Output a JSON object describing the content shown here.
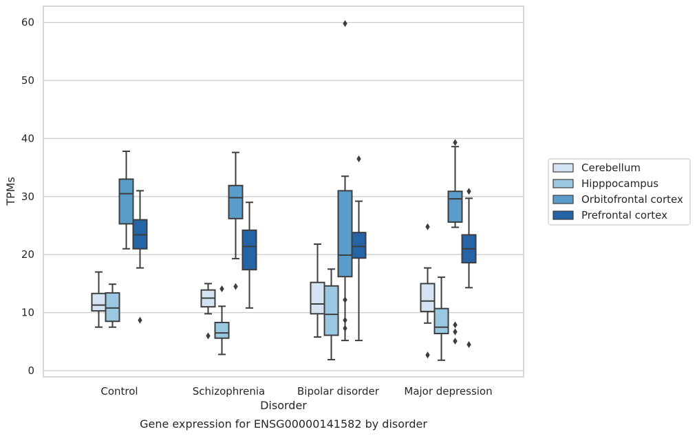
{
  "chart_data": {
    "type": "box",
    "title": "Gene expression for ENSG00000141582 by disorder",
    "xlabel": "Disorder",
    "ylabel": "TPMs",
    "ylim": [
      -1,
      63
    ],
    "yticks": [
      0,
      10,
      20,
      30,
      40,
      50,
      60
    ],
    "grid": "horizontal",
    "legend_placement": "right",
    "categories": [
      "Control",
      "Schizophrenia",
      "Bipolar disorder",
      "Major depression"
    ],
    "series": [
      {
        "name": "Cerebellum",
        "color": "#d4e3f1",
        "boxes": [
          {
            "whislo": 7.5,
            "q1": 10.3,
            "med": 11.3,
            "q3": 13.3,
            "whishi": 17.0,
            "fliers": []
          },
          {
            "whislo": 9.8,
            "q1": 11.0,
            "med": 12.5,
            "q3": 13.9,
            "whishi": 15.0,
            "fliers": [
              6.0
            ]
          },
          {
            "whislo": 5.8,
            "q1": 9.8,
            "med": 11.5,
            "q3": 15.2,
            "whishi": 21.8,
            "fliers": []
          },
          {
            "whislo": 8.2,
            "q1": 10.2,
            "med": 12.0,
            "q3": 15.0,
            "whishi": 17.7,
            "fliers": [
              2.7,
              24.8
            ]
          }
        ]
      },
      {
        "name": "Hipppocampus",
        "color": "#9ac8e0",
        "boxes": [
          {
            "whislo": 7.5,
            "q1": 8.5,
            "med": 10.8,
            "q3": 13.4,
            "whishi": 14.9,
            "fliers": []
          },
          {
            "whislo": 2.8,
            "q1": 5.6,
            "med": 6.5,
            "q3": 8.3,
            "whishi": 11.1,
            "fliers": [
              14.1
            ]
          },
          {
            "whislo": 1.9,
            "q1": 6.1,
            "med": 9.7,
            "q3": 14.6,
            "whishi": 17.5,
            "fliers": []
          },
          {
            "whislo": 1.8,
            "q1": 6.4,
            "med": 7.5,
            "q3": 10.7,
            "whishi": 16.1,
            "fliers": []
          }
        ]
      },
      {
        "name": "Orbitofrontal cortex",
        "color": "#5a9dcb",
        "boxes": [
          {
            "whislo": 21.0,
            "q1": 25.3,
            "med": 30.5,
            "q3": 33.0,
            "whishi": 37.8,
            "fliers": []
          },
          {
            "whislo": 19.3,
            "q1": 26.2,
            "med": 29.8,
            "q3": 31.9,
            "whishi": 37.6,
            "fliers": [
              14.5
            ]
          },
          {
            "whislo": 5.2,
            "q1": 16.2,
            "med": 19.9,
            "q3": 31.0,
            "whishi": 33.5,
            "fliers": [
              59.8,
              12.2,
              8.7,
              7.3
            ]
          },
          {
            "whislo": 24.7,
            "q1": 25.6,
            "med": 29.6,
            "q3": 30.9,
            "whishi": 38.6,
            "fliers": [
              39.3,
              7.9,
              6.7,
              5.1
            ]
          }
        ]
      },
      {
        "name": "Prefrontal cortex",
        "color": "#2564a5",
        "boxes": [
          {
            "whislo": 17.7,
            "q1": 21.0,
            "med": 23.4,
            "q3": 26.0,
            "whishi": 31.0,
            "fliers": [
              8.7
            ]
          },
          {
            "whislo": 10.8,
            "q1": 17.4,
            "med": 21.4,
            "q3": 24.2,
            "whishi": 29.0,
            "fliers": []
          },
          {
            "whislo": 5.2,
            "q1": 19.4,
            "med": 21.4,
            "q3": 23.8,
            "whishi": 29.2,
            "fliers": [
              36.5
            ]
          },
          {
            "whislo": 14.3,
            "q1": 18.6,
            "med": 21.0,
            "q3": 23.4,
            "whishi": 29.7,
            "fliers": [
              30.9,
              4.5
            ]
          }
        ]
      }
    ]
  }
}
